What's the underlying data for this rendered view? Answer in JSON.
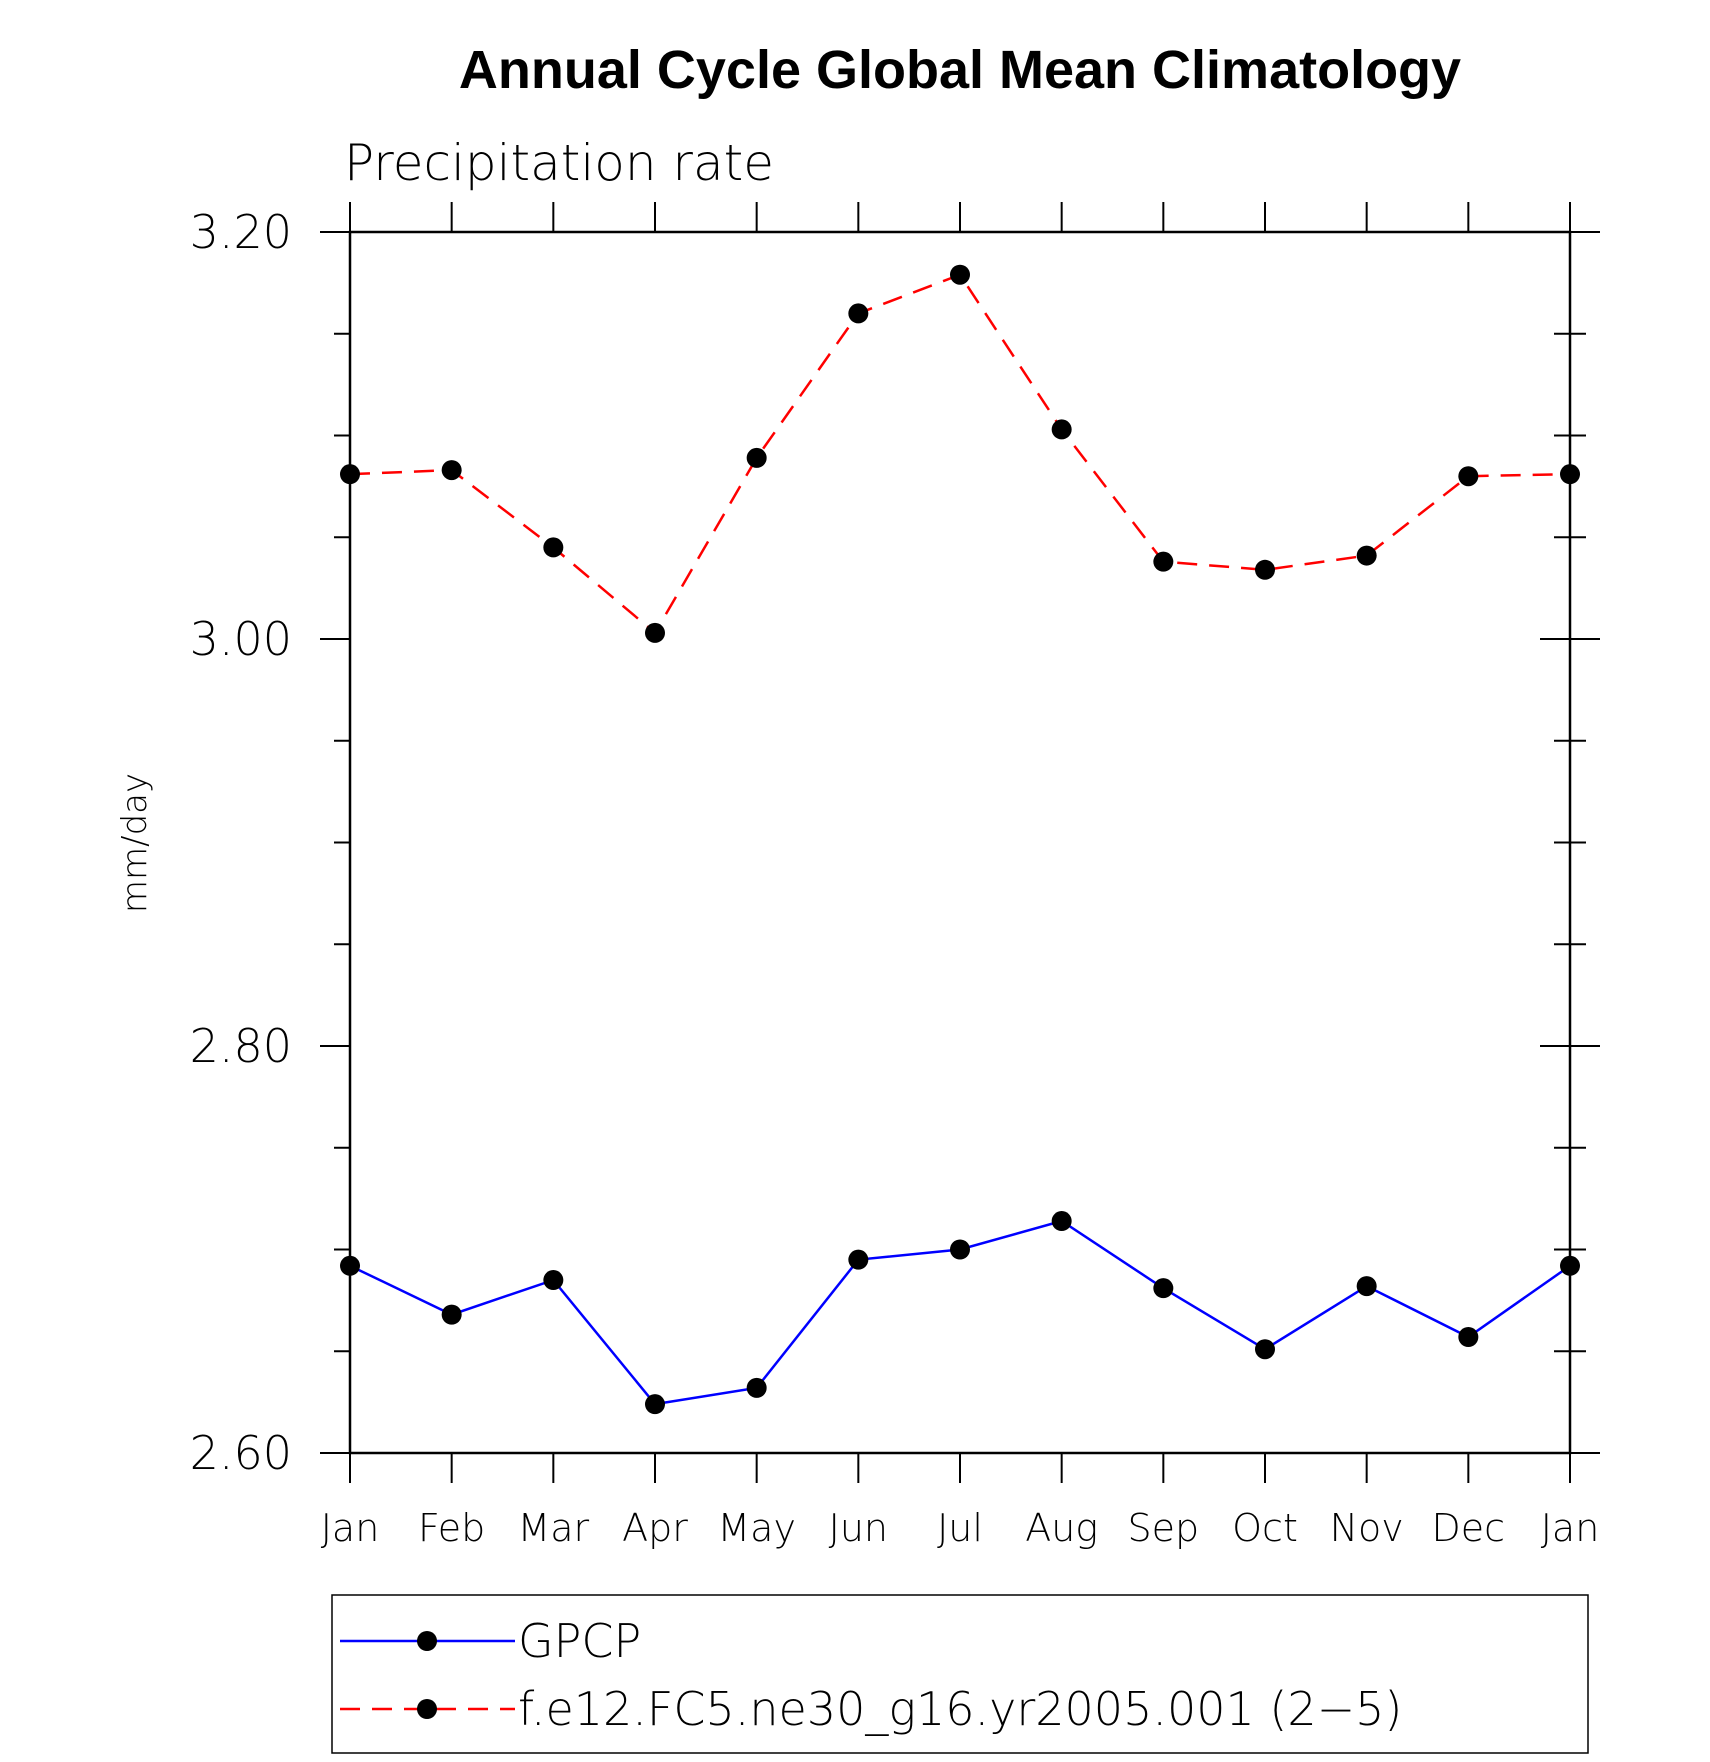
{
  "chart_data": {
    "type": "line",
    "title": "Annual Cycle Global Mean Climatology",
    "subtitle": "Precipitation rate",
    "xlabel": "",
    "ylabel": "mm/day",
    "categories": [
      "Jan",
      "Feb",
      "Mar",
      "Apr",
      "May",
      "Jun",
      "Jul",
      "Aug",
      "Sep",
      "Oct",
      "Nov",
      "Dec",
      "Jan"
    ],
    "ylim": [
      2.6,
      3.2
    ],
    "yticks": [
      "3.20",
      "3.00",
      "2.80",
      "2.60"
    ],
    "grid": false,
    "legend_position": "bottom",
    "series": [
      {
        "name": "GPCP",
        "color": "#0000ff",
        "style": "solid",
        "marker": "circle",
        "marker_color": "#000000",
        "values": [
          2.692,
          2.668,
          2.685,
          2.624,
          2.632,
          2.695,
          2.7,
          2.714,
          2.681,
          2.651,
          2.682,
          2.657,
          2.692
        ]
      },
      {
        "name": "f.e12.FC5.ne30_g16.yr2005.001 (2−5)",
        "color": "#ff0000",
        "style": "dashed",
        "marker": "circle",
        "marker_color": "#000000",
        "values": [
          3.081,
          3.083,
          3.045,
          3.003,
          3.089,
          3.16,
          3.179,
          3.103,
          3.038,
          3.034,
          3.041,
          3.08,
          3.081
        ]
      }
    ]
  }
}
